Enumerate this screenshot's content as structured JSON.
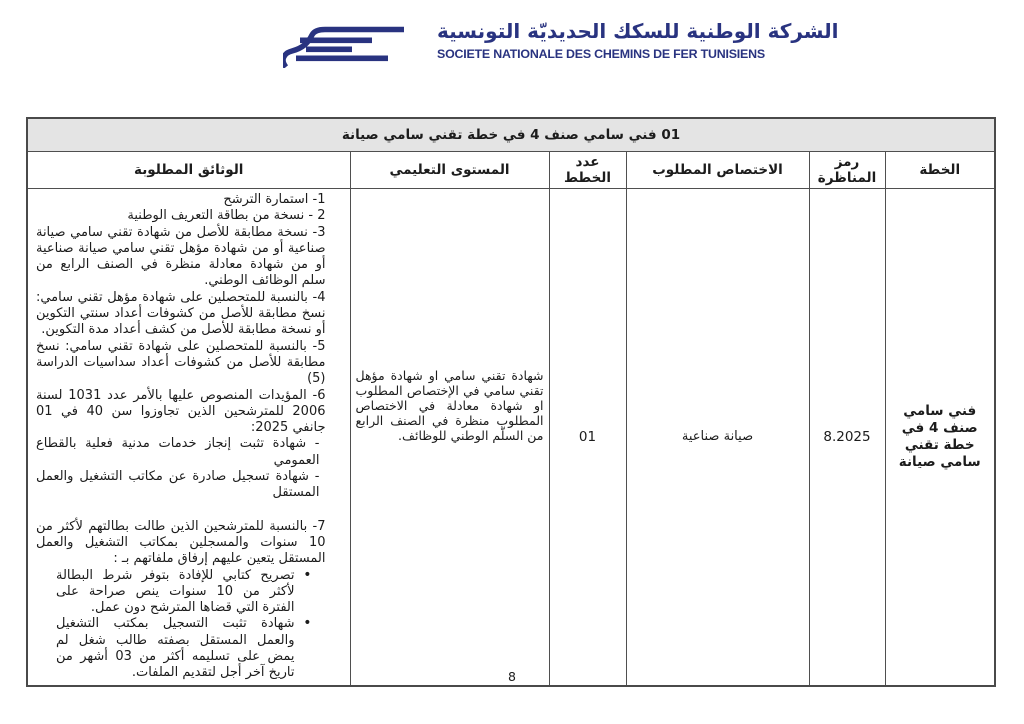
{
  "header": {
    "company_name_ar": "الشركة الوطنية للسكك الحديديّة التونسية",
    "company_name_fr": "SOCIETE NATIONALE DES CHEMINS DE FER TUNISIENS",
    "brand_color": "#293380",
    "logo": "sncft-train-swoosh-logo"
  },
  "table": {
    "title": "01 فني سامي صنف 4 في خطة تقني سامي صيانة",
    "columns": [
      "الخطة",
      "رمز المناظرة",
      "الاختصاص المطلوب",
      "عدد الخطط",
      "المستوى التعليمي",
      "الوثائق المطلوبة"
    ],
    "row": {
      "plan": "فني سامي صنف 4 في خطة تقني سامي صيانة",
      "competition_code": "8.2025",
      "specialization": "صيانة صناعية",
      "positions_count": "01",
      "education_level": "شهادة تقني سامي او شهادة مؤهل تقني سامي في الإختصاص المطلوب او شهادة معادلة في الاختصاص المطلوب منظرة في الصنف الرابع من السلّم الوطني للوظائف.",
      "documents": {
        "items": [
          {
            "text": "1- استمارة الترشح",
            "style": ""
          },
          {
            "text": "2 - نسخة من بطاقة التعريف الوطنية",
            "style": ""
          },
          {
            "text": "3- نسخة مطابقة للأصل من شهادة تقني سامي صيانة صناعية أو من شهادة مؤهل تقني سامي صيانة صناعية أو من شهادة معادلة منظرة في الصنف الرابع من سلم الوظائف الوطني.",
            "style": ""
          },
          {
            "text": "4- بالنسبة للمتحصلين على شهادة مؤهل تقني سامي: نسخ مطابقة للأصل من كشوفات أعداد سنتي التكوين أو نسخة مطابقة للأصل من كشف أعداد مدة التكوين.",
            "style": ""
          },
          {
            "text": "5- بالنسبة للمتحصلين على شهادة تقني سامي: نسخ مطابقة للأصل من كشوفات أعداد سداسيات الدراسة (5)",
            "style": ""
          },
          {
            "text": "6- المؤيدات المنصوص عليها بالأمر عدد 1031 لسنة 2006 للمترشحين الذين تجاوزوا سن 40 في 01 جانفي 2025:",
            "style": ""
          },
          {
            "text": "- شهادة تثبت إنجاز خدمات مدنية فعلية بالقطاع العمومي",
            "style": "dash"
          },
          {
            "text": "- شهادة تسجيل صادرة عن مكاتب التشغيل والعمل المستقل",
            "style": "dash"
          },
          {
            "text": "7- بالنسبة للمترشحين الذين طالت بطالتهم لأكثر من 10 سنوات والمسجلين بمكاتب التشغيل والعمل المستقل يتعين عليهم إرفاق ملفاتهم بـ :",
            "style": "gap"
          }
        ],
        "bullets": [
          "تصريح كتابي للإفادة بتوفر شرط البطالة لأكثر من 10 سنوات ينص صراحة على الفترة التي قضاها المترشح دون عمل.",
          "شهادة تثبت التسجيل بمكتب التشغيل والعمل المستقل بصفته طالب شغل لم يمض على تسليمه أكثر من 03 أشهر من تاريخ آخر أجل لتقديم الملفات."
        ]
      }
    }
  },
  "page": {
    "number": "8"
  }
}
